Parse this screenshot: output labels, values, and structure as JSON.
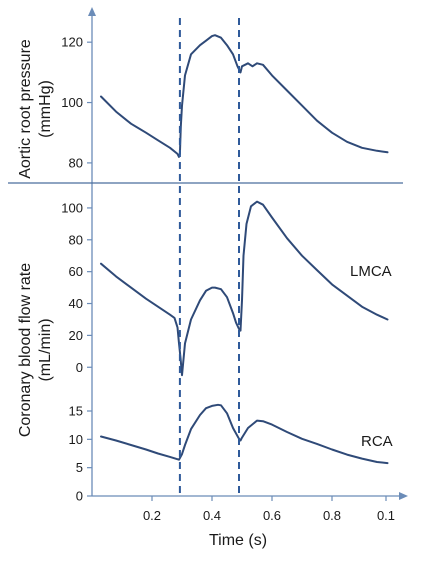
{
  "chart_data": [
    {
      "type": "line",
      "panel": "top",
      "ylabel_lines": [
        "Aortic root",
        "pressure",
        "(mmHg)"
      ],
      "ylabel": "Aortic root pressure (mmHg)",
      "ylim": [
        75,
        130
      ],
      "yticks": [
        80,
        100,
        120
      ],
      "series": [
        {
          "x": [
            0.03,
            0.08,
            0.13,
            0.18,
            0.22,
            0.26,
            0.285,
            0.29,
            0.293,
            0.296,
            0.3,
            0.31,
            0.33,
            0.36,
            0.38,
            0.4,
            0.41,
            0.43,
            0.45,
            0.47,
            0.485,
            0.49,
            0.495,
            0.5,
            0.52,
            0.535,
            0.55,
            0.57,
            0.6,
            0.65,
            0.7,
            0.75,
            0.8,
            0.85,
            0.9,
            0.95,
            0.985
          ],
          "y": [
            102,
            97,
            93,
            90,
            87.5,
            85,
            83,
            82,
            83,
            92,
            99,
            109,
            116,
            119,
            120.5,
            122,
            122.3,
            121.5,
            119,
            116,
            112,
            111,
            110,
            112,
            113,
            112,
            113,
            112.5,
            109,
            104,
            99,
            94,
            90,
            87,
            85,
            84,
            83.5
          ]
        }
      ]
    },
    {
      "type": "line",
      "panel": "middle",
      "ylim": [
        -8,
        110
      ],
      "yticks": [
        0,
        20,
        40,
        60,
        80,
        100
      ],
      "series": [
        {
          "name": "LMCA",
          "x": [
            0.03,
            0.08,
            0.13,
            0.18,
            0.22,
            0.26,
            0.275,
            0.285,
            0.29,
            0.295,
            0.3,
            0.31,
            0.33,
            0.36,
            0.38,
            0.4,
            0.41,
            0.43,
            0.45,
            0.47,
            0.48,
            0.49,
            0.495,
            0.5,
            0.505,
            0.515,
            0.53,
            0.55,
            0.57,
            0.6,
            0.65,
            0.7,
            0.75,
            0.8,
            0.85,
            0.9,
            0.95,
            0.985
          ],
          "y": [
            65,
            57,
            50,
            43,
            38,
            33,
            31,
            25,
            15,
            6,
            -5,
            15,
            30,
            42,
            48,
            50,
            50,
            49,
            44,
            34,
            28,
            24,
            23,
            42,
            70,
            90,
            101,
            104,
            102,
            94,
            81,
            70,
            61,
            52,
            45,
            38,
            33,
            30
          ]
        }
      ]
    },
    {
      "type": "line",
      "panel": "bottom",
      "ylabel_lines": [
        "Coronary blood",
        "flow rate",
        "(mL/min)"
      ],
      "ylabel": "Coronary blood flow rate (mL/min)",
      "ylim": [
        0,
        18
      ],
      "yticks": [
        0,
        5,
        10,
        15
      ],
      "series": [
        {
          "name": "RCA",
          "x": [
            0.03,
            0.08,
            0.13,
            0.18,
            0.22,
            0.26,
            0.29,
            0.3,
            0.31,
            0.33,
            0.36,
            0.38,
            0.4,
            0.42,
            0.43,
            0.45,
            0.47,
            0.49,
            0.495,
            0.5,
            0.52,
            0.55,
            0.57,
            0.6,
            0.65,
            0.7,
            0.75,
            0.8,
            0.85,
            0.9,
            0.95,
            0.985
          ],
          "y": [
            10.5,
            9.8,
            9.0,
            8.2,
            7.5,
            6.9,
            6.4,
            7.4,
            9.0,
            11.8,
            14.3,
            15.5,
            15.9,
            16.1,
            16.0,
            14.6,
            12.0,
            10.1,
            9.8,
            10.3,
            12.0,
            13.3,
            13.2,
            12.6,
            11.3,
            10.1,
            9.2,
            8.2,
            7.3,
            6.6,
            6.0,
            5.8
          ]
        }
      ]
    }
  ],
  "xaxis": {
    "label": "Time (s)",
    "ticks": [
      0.2,
      0.4,
      0.6,
      0.8
    ],
    "tick_labels": [
      "0.2",
      "0.4",
      "0.6",
      "0.8",
      "0.1"
    ],
    "xlim": [
      0,
      1.0
    ],
    "last_tick_value": 0.98
  },
  "markers": {
    "vertical_dashed_lines": [
      0.293,
      0.49
    ]
  },
  "colors": {
    "curve": "#2f4a78",
    "axis": "#6b8cb8",
    "dashed": "#2f5a9a"
  }
}
